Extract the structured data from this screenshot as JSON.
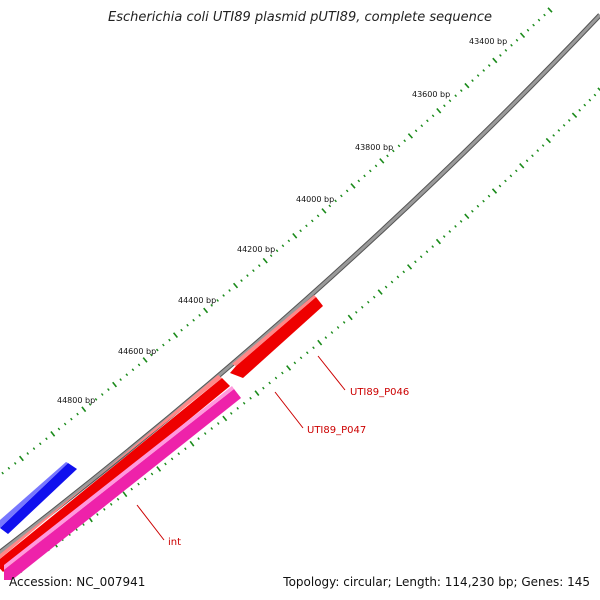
{
  "title": "Escherichia coli UTI89 plasmid pUTI89, complete sequence",
  "footer": {
    "accession": "Accession: NC_007941",
    "summary": "Topology: circular; Length: 114,230 bp; Genes: 145"
  },
  "colors": {
    "backbone": "#808080",
    "tick": "#1a8a1a",
    "gene_red": "#ee0000",
    "gene_pink": "#ee22aa",
    "gene_blue": "#0000ee",
    "label": "#cc0000"
  },
  "tick_labels": [
    "43400 bp",
    "43600 bp",
    "43800 bp",
    "44000 bp",
    "44200 bp",
    "44400 bp",
    "44600 bp",
    "44800 bp"
  ],
  "genes": [
    {
      "name": "UTI89_P046",
      "color": "red",
      "strand": "reverse"
    },
    {
      "name": "UTI89_P047",
      "color": "red",
      "strand": "forward"
    },
    {
      "name": "int",
      "color": "pink",
      "strand": "forward"
    },
    {
      "name": "",
      "color": "blue",
      "strand": "forward"
    }
  ]
}
